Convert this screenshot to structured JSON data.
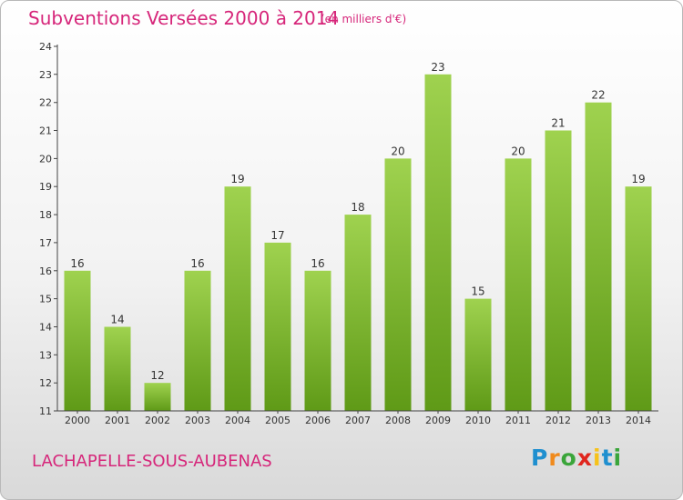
{
  "header": {
    "title": "Subventions Versées 2000 à 2014",
    "unit": "(en milliers d'€)"
  },
  "footer": {
    "commune": "LACHAPELLE-SOUS-AUBENAS",
    "logo": [
      "P",
      "r",
      "o",
      "x",
      "i",
      "t",
      "i"
    ]
  },
  "colors": {
    "title": "#d6267a",
    "bar_top": "#9fd24f",
    "bar_bottom": "#5f9a17",
    "axis": "#444444"
  },
  "chart_data": {
    "type": "bar",
    "title": "Subventions Versées 2000 à 2014",
    "subtitle": "(en milliers d'€)",
    "categories": [
      "2000",
      "2001",
      "2002",
      "2003",
      "2004",
      "2005",
      "2006",
      "2007",
      "2008",
      "2009",
      "2010",
      "2011",
      "2012",
      "2013",
      "2014"
    ],
    "values": [
      16,
      14,
      12,
      16,
      19,
      17,
      16,
      18,
      20,
      23,
      15,
      20,
      21,
      22,
      19
    ],
    "data_labels": [
      "16",
      "14",
      "12",
      "16",
      "19",
      "17",
      "16",
      "18",
      "20",
      "23",
      "15",
      "20",
      "21",
      "22",
      "19"
    ],
    "yticks": [
      "11",
      "12",
      "13",
      "14",
      "15",
      "16",
      "17",
      "18",
      "19",
      "20",
      "21",
      "22",
      "23",
      "24"
    ],
    "ylim": [
      11,
      24
    ],
    "xlabel": "",
    "ylabel": "",
    "grid": false,
    "legend": "none"
  }
}
